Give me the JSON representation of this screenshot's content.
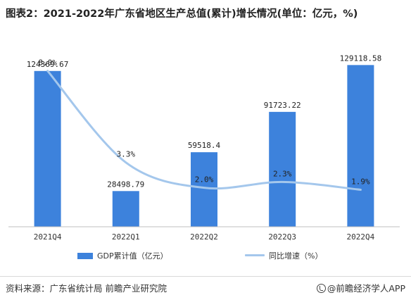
{
  "title": "图表2：2021-2022年广东省地区生产总值(累计)增长情况(单位：亿元，%)",
  "colors": {
    "bar": "#3d82dc",
    "line": "#a4c7ec",
    "axis": "#bfbfbf"
  },
  "chart_data": {
    "type": "bar",
    "categories": [
      "2021Q4",
      "2022Q1",
      "2022Q2",
      "2022Q3",
      "2022Q4"
    ],
    "series": [
      {
        "name": "GDP累计值（亿元）",
        "type": "bar",
        "axis": "left",
        "values": [
          124369.67,
          28498.79,
          59518.4,
          91723.22,
          129118.58
        ],
        "labels": [
          "124369.67",
          "28498.79",
          "59518.4",
          "91723.22",
          "129118.58"
        ]
      },
      {
        "name": "同比增速（%）",
        "type": "line",
        "axis": "right",
        "smooth": true,
        "values": [
          8.0,
          3.3,
          2.0,
          2.3,
          1.9
        ],
        "labels": [
          "8.0%",
          "3.3%",
          "2.0%",
          "2.3%",
          "1.9%"
        ]
      }
    ],
    "ylim": [
      0,
      140000
    ],
    "y2lim": [
      0,
      9
    ],
    "grid": false,
    "legend": "bottom"
  },
  "source": "资料来源：广东省统计局 前瞻产业研究院",
  "brand": "@前瞻经济学人APP"
}
